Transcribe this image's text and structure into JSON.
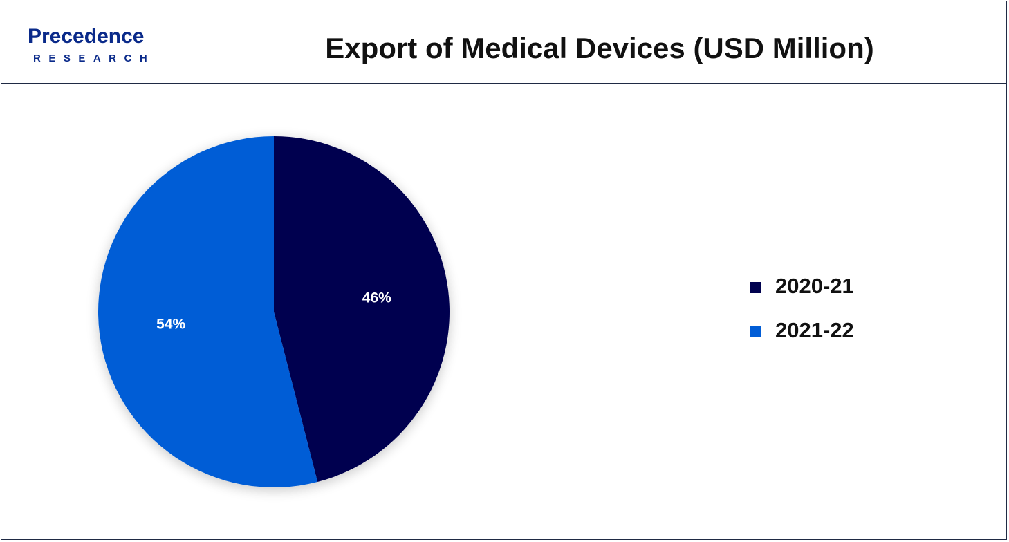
{
  "header": {
    "logo_main": "Precedence",
    "logo_sub": "RESEARCH",
    "title": "Export of Medical Devices (USD Million)"
  },
  "colors": {
    "brand": "#0a2a8a",
    "series_2020_21": "#01024f",
    "series_2021_22": "#015dd6",
    "label_text": "#ffffff"
  },
  "chart_data": {
    "type": "pie",
    "title": "Export of Medical Devices (USD Million)",
    "categories": [
      "2020-21",
      "2021-22"
    ],
    "values": [
      46,
      54
    ],
    "labels": [
      "46%",
      "54%"
    ],
    "legend_position": "right",
    "start_angle": "top",
    "direction": "clockwise"
  },
  "legend": {
    "items": [
      {
        "label": "2020-21"
      },
      {
        "label": "2021-22"
      }
    ]
  }
}
